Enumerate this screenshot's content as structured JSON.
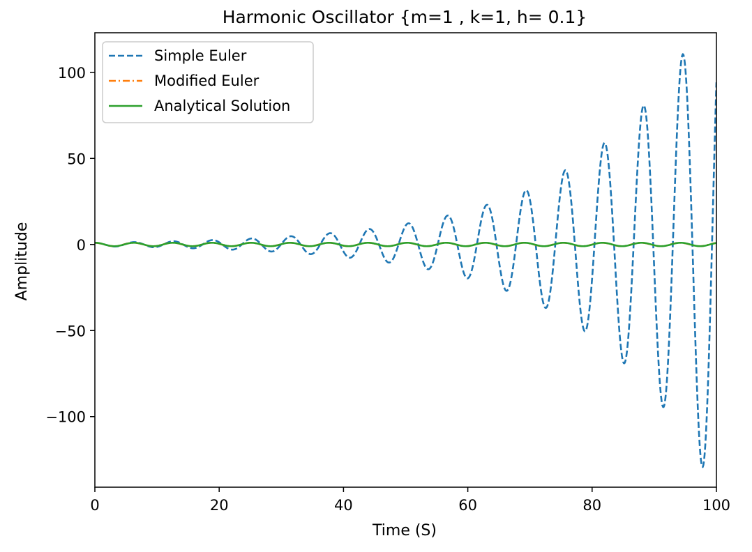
{
  "chart_data": {
    "type": "line",
    "title": "Harmonic Oscillator {m=1 , k=1, h= 0.1}",
    "xlabel": "Time (S)",
    "ylabel": "Amplitude",
    "xlim": [
      0,
      100
    ],
    "ylim": [
      -141,
      123
    ],
    "xticks": [
      0,
      20,
      40,
      60,
      80,
      100
    ],
    "yticks": [
      -100,
      -50,
      0,
      50,
      100
    ],
    "xtick_labels": [
      "0",
      "20",
      "40",
      "60",
      "80",
      "100"
    ],
    "ytick_labels": [
      "−100",
      "−50",
      "0",
      "50",
      "100"
    ],
    "grid": false,
    "legend_position": "upper-left",
    "sampling": {
      "h": 0.1,
      "t_max": 100
    },
    "series": [
      {
        "name": "Simple Euler",
        "color": "#1f77b4",
        "linestyle": "dashed",
        "method": "explicit-euler",
        "initial": {
          "x": 1,
          "v": 0
        }
      },
      {
        "name": "Modified Euler",
        "color": "#ff7f0e",
        "linestyle": "dashdot",
        "method": "semi-implicit-euler",
        "initial": {
          "x": 1,
          "v": 0
        }
      },
      {
        "name": "Analytical Solution",
        "color": "#2ca02c",
        "linestyle": "solid",
        "method": "cos(t)",
        "initial": {
          "x": 1,
          "v": 0
        }
      }
    ]
  }
}
